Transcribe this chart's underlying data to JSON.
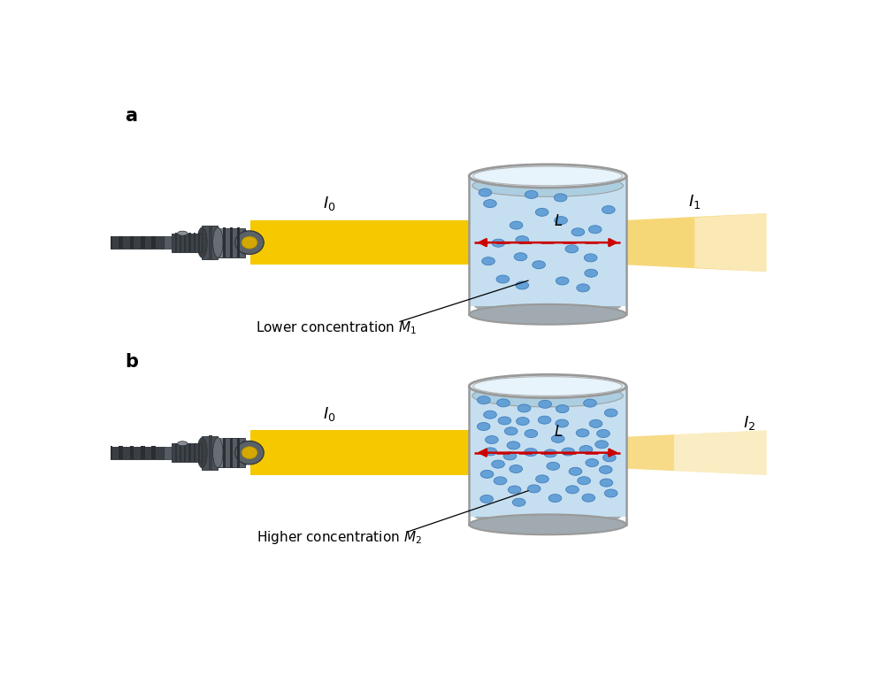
{
  "fig_width": 9.97,
  "fig_height": 7.81,
  "background_color": "#ffffff",
  "panel_a": {
    "label": "a",
    "I0_label": "$I_0$",
    "I1_label": "$I_1$",
    "L_label": "$L$",
    "concentration_label": "Lower concentration $M_1$",
    "dots_count": 22,
    "dot_color": "#5b9bd5",
    "dot_alpha": 0.9
  },
  "panel_b": {
    "label": "b",
    "I0_label": "$I_0$",
    "I2_label": "$I_2$",
    "L_label": "$L$",
    "concentration_label": "Higher concentration $M_2$",
    "dots_count": 48,
    "dot_color": "#5b9bd5",
    "dot_alpha": 0.9
  },
  "cylinder_body_color": "#c5dff0",
  "cylinder_rim_color": "#e8f4fb",
  "cylinder_liquid_top_color": "#a8ccdf",
  "cylinder_edge_color": "#999999",
  "cylinder_bottom_color": "#a0aab0",
  "beam_yellow": "#f5c800",
  "beam_yellow_right": "#f5d060",
  "arrow_color": "#cc0000",
  "source_body_dark": "#3a3f44",
  "source_body_mid": "#555c63",
  "source_body_light": "#6e787f"
}
